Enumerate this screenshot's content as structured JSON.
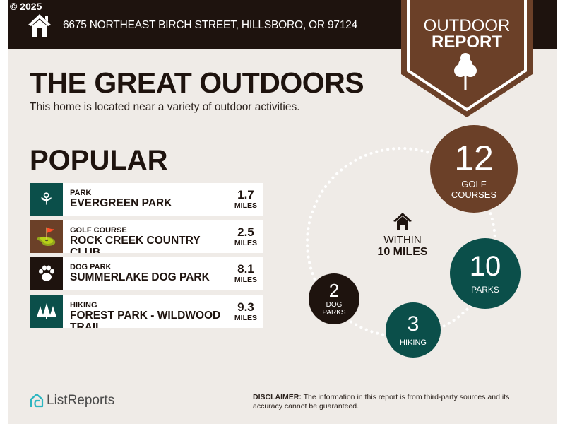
{
  "header": {
    "copyright": "© 2025",
    "address": "6675 NORTHEAST BIRCH STREET, HILLSBORO, OR 97124",
    "icon": "home-icon"
  },
  "badge": {
    "line1": "OUTDOOR",
    "line2": "REPORT",
    "icon": "tree-icon"
  },
  "main": {
    "title": "THE GREAT OUTDOORS",
    "subtitle": "This home is located near a variety of outdoor activities.",
    "section": "POPULAR"
  },
  "popular": [
    {
      "category": "PARK",
      "name": "EVERGREEN PARK",
      "distance": "1.7",
      "unit": "MILES",
      "icon": "park-icon",
      "color": "#0b4f4a"
    },
    {
      "category": "GOLF COURSE",
      "name": "ROCK CREEK COUNTRY CLUB",
      "distance": "2.5",
      "unit": "MILES",
      "icon": "golf-bag-icon",
      "color": "#6b4028"
    },
    {
      "category": "DOG PARK",
      "name": "SUMMERLAKE DOG PARK",
      "distance": "8.1",
      "unit": "MILES",
      "icon": "paw-icon",
      "color": "#1e130e"
    },
    {
      "category": "HIKING",
      "name": "FOREST PARK - WILDWOOD TRAIL",
      "distance": "9.3",
      "unit": "MILES",
      "icon": "pine-trees-icon",
      "color": "#0b4f4a"
    }
  ],
  "radius": {
    "line1": "WITHIN",
    "line2": "10 MILES"
  },
  "counts": [
    {
      "value": "12",
      "label1": "GOLF",
      "label2": "COURSES",
      "color": "#6b4028"
    },
    {
      "value": "10",
      "label1": "PARKS",
      "label2": "",
      "color": "#0b4f4a"
    },
    {
      "value": "3",
      "label1": "HIKING",
      "label2": "",
      "color": "#0b4f4a"
    },
    {
      "value": "2",
      "label1": "DOG",
      "label2": "PARKS",
      "color": "#1e130e"
    }
  ],
  "footer": {
    "logo": "ListReports",
    "disclaimer_label": "DISCLAIMER:",
    "disclaimer": " The information in this report is from third-party sources and its accuracy cannot be guaranteed."
  }
}
